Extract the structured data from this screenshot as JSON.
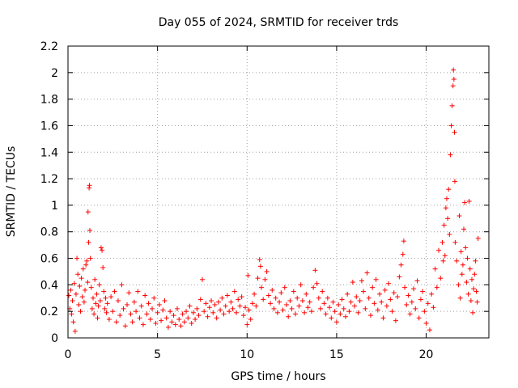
{
  "chart_data": {
    "type": "scatter",
    "title": "Day 055 of 2024, SRMTID for receiver trds",
    "xlabel": "GPS time / hours",
    "ylabel": "SRMTID / TECUs",
    "xlim": [
      0,
      23.5
    ],
    "ylim": [
      0,
      2.2
    ],
    "xticks": [
      0,
      5,
      10,
      15,
      20
    ],
    "xtick_labels": [
      "0",
      "5",
      "10",
      "15",
      "20"
    ],
    "yticks": [
      0,
      0.2,
      0.4,
      0.6,
      0.8,
      1.0,
      1.2,
      1.4,
      1.6,
      1.8,
      2.0,
      2.2
    ],
    "ytick_labels": [
      "0",
      "0.2",
      "0.4",
      "0.6",
      "0.8",
      "1",
      "1.2",
      "1.4",
      "1.6",
      "1.8",
      "2",
      "2.2"
    ],
    "grid": true,
    "marker": "plus",
    "color": "#ff0000",
    "series": [
      {
        "name": "SRMTID",
        "points": [
          [
            0.05,
            0.32
          ],
          [
            0.1,
            0.22
          ],
          [
            0.15,
            0.36
          ],
          [
            0.2,
            0.18
          ],
          [
            0.25,
            0.28
          ],
          [
            0.3,
            0.12
          ],
          [
            0.35,
            0.41
          ],
          [
            0.4,
            0.05
          ],
          [
            0.45,
            0.33
          ],
          [
            0.5,
            0.6
          ],
          [
            0.55,
            0.48
          ],
          [
            0.6,
            0.25
          ],
          [
            0.65,
            0.39
          ],
          [
            0.7,
            0.2
          ],
          [
            0.75,
            0.45
          ],
          [
            0.8,
            0.31
          ],
          [
            0.85,
            0.52
          ],
          [
            0.9,
            0.27
          ],
          [
            0.95,
            0.36
          ],
          [
            1.0,
            0.55
          ],
          [
            1.05,
            0.58
          ],
          [
            1.1,
            0.42
          ],
          [
            1.12,
            0.95
          ],
          [
            1.15,
            0.72
          ],
          [
            1.18,
            1.13
          ],
          [
            1.2,
            1.15
          ],
          [
            1.22,
            0.81
          ],
          [
            1.25,
            0.6
          ],
          [
            1.3,
            0.38
          ],
          [
            1.35,
            0.22
          ],
          [
            1.4,
            0.3
          ],
          [
            1.45,
            0.18
          ],
          [
            1.5,
            0.44
          ],
          [
            1.55,
            0.26
          ],
          [
            1.6,
            0.33
          ],
          [
            1.65,
            0.15
          ],
          [
            1.7,
            0.24
          ],
          [
            1.75,
            0.4
          ],
          [
            1.8,
            0.28
          ],
          [
            1.85,
            0.68
          ],
          [
            1.9,
            0.66
          ],
          [
            1.95,
            0.53
          ],
          [
            2.0,
            0.35
          ],
          [
            2.05,
            0.22
          ],
          [
            2.1,
            0.3
          ],
          [
            2.15,
            0.19
          ],
          [
            2.2,
            0.26
          ],
          [
            2.3,
            0.14
          ],
          [
            2.4,
            0.31
          ],
          [
            2.5,
            0.2
          ],
          [
            2.6,
            0.35
          ],
          [
            2.7,
            0.12
          ],
          [
            2.8,
            0.28
          ],
          [
            2.9,
            0.17
          ],
          [
            3.0,
            0.4
          ],
          [
            3.1,
            0.22
          ],
          [
            3.2,
            0.09
          ],
          [
            3.3,
            0.25
          ],
          [
            3.4,
            0.34
          ],
          [
            3.5,
            0.18
          ],
          [
            3.6,
            0.12
          ],
          [
            3.7,
            0.27
          ],
          [
            3.8,
            0.2
          ],
          [
            3.9,
            0.35
          ],
          [
            4.0,
            0.15
          ],
          [
            4.1,
            0.24
          ],
          [
            4.2,
            0.1
          ],
          [
            4.3,
            0.32
          ],
          [
            4.4,
            0.18
          ],
          [
            4.5,
            0.26
          ],
          [
            4.6,
            0.14
          ],
          [
            4.7,
            0.22
          ],
          [
            4.8,
            0.3
          ],
          [
            4.9,
            0.11
          ],
          [
            5.0,
            0.19
          ],
          [
            5.1,
            0.25
          ],
          [
            5.2,
            0.13
          ],
          [
            5.3,
            0.21
          ],
          [
            5.4,
            0.28
          ],
          [
            5.5,
            0.15
          ],
          [
            5.6,
            0.08
          ],
          [
            5.7,
            0.2
          ],
          [
            5.8,
            0.12
          ],
          [
            5.9,
            0.17
          ],
          [
            6.0,
            0.1
          ],
          [
            6.1,
            0.22
          ],
          [
            6.2,
            0.14
          ],
          [
            6.3,
            0.09
          ],
          [
            6.4,
            0.18
          ],
          [
            6.5,
            0.12
          ],
          [
            6.6,
            0.2
          ],
          [
            6.7,
            0.15
          ],
          [
            6.8,
            0.24
          ],
          [
            6.9,
            0.11
          ],
          [
            7.0,
            0.19
          ],
          [
            7.1,
            0.14
          ],
          [
            7.2,
            0.22
          ],
          [
            7.3,
            0.17
          ],
          [
            7.4,
            0.29
          ],
          [
            7.5,
            0.44
          ],
          [
            7.6,
            0.2
          ],
          [
            7.7,
            0.26
          ],
          [
            7.8,
            0.16
          ],
          [
            7.9,
            0.23
          ],
          [
            8.0,
            0.28
          ],
          [
            8.1,
            0.19
          ],
          [
            8.2,
            0.25
          ],
          [
            8.3,
            0.15
          ],
          [
            8.4,
            0.27
          ],
          [
            8.5,
            0.21
          ],
          [
            8.6,
            0.3
          ],
          [
            8.7,
            0.18
          ],
          [
            8.8,
            0.24
          ],
          [
            8.9,
            0.32
          ],
          [
            9.0,
            0.2
          ],
          [
            9.1,
            0.27
          ],
          [
            9.2,
            0.22
          ],
          [
            9.3,
            0.35
          ],
          [
            9.4,
            0.19
          ],
          [
            9.5,
            0.29
          ],
          [
            9.6,
            0.24
          ],
          [
            9.7,
            0.31
          ],
          [
            9.8,
            0.17
          ],
          [
            9.9,
            0.23
          ],
          [
            10.0,
            0.1
          ],
          [
            10.05,
            0.47
          ],
          [
            10.1,
            0.21
          ],
          [
            10.2,
            0.14
          ],
          [
            10.3,
            0.26
          ],
          [
            10.4,
            0.33
          ],
          [
            10.5,
            0.24
          ],
          [
            10.6,
            0.45
          ],
          [
            10.7,
            0.59
          ],
          [
            10.75,
            0.54
          ],
          [
            10.8,
            0.38
          ],
          [
            10.9,
            0.29
          ],
          [
            11.0,
            0.44
          ],
          [
            11.1,
            0.5
          ],
          [
            11.2,
            0.32
          ],
          [
            11.3,
            0.26
          ],
          [
            11.4,
            0.36
          ],
          [
            11.5,
            0.22
          ],
          [
            11.6,
            0.3
          ],
          [
            11.7,
            0.19
          ],
          [
            11.8,
            0.27
          ],
          [
            11.9,
            0.34
          ],
          [
            12.0,
            0.21
          ],
          [
            12.1,
            0.38
          ],
          [
            12.2,
            0.25
          ],
          [
            12.3,
            0.16
          ],
          [
            12.4,
            0.28
          ],
          [
            12.5,
            0.22
          ],
          [
            12.6,
            0.35
          ],
          [
            12.7,
            0.18
          ],
          [
            12.8,
            0.3
          ],
          [
            12.9,
            0.24
          ],
          [
            13.0,
            0.4
          ],
          [
            13.1,
            0.28
          ],
          [
            13.2,
            0.19
          ],
          [
            13.3,
            0.33
          ],
          [
            13.4,
            0.23
          ],
          [
            13.5,
            0.27
          ],
          [
            13.6,
            0.2
          ],
          [
            13.7,
            0.38
          ],
          [
            13.8,
            0.51
          ],
          [
            13.9,
            0.41
          ],
          [
            14.0,
            0.3
          ],
          [
            14.1,
            0.22
          ],
          [
            14.2,
            0.35
          ],
          [
            14.3,
            0.26
          ],
          [
            14.4,
            0.18
          ],
          [
            14.5,
            0.3
          ],
          [
            14.6,
            0.23
          ],
          [
            14.7,
            0.15
          ],
          [
            14.8,
            0.27
          ],
          [
            14.9,
            0.2
          ],
          [
            15.0,
            0.12
          ],
          [
            15.1,
            0.25
          ],
          [
            15.2,
            0.18
          ],
          [
            15.3,
            0.29
          ],
          [
            15.4,
            0.22
          ],
          [
            15.5,
            0.16
          ],
          [
            15.6,
            0.33
          ],
          [
            15.7,
            0.2
          ],
          [
            15.8,
            0.27
          ],
          [
            15.9,
            0.42
          ],
          [
            16.0,
            0.24
          ],
          [
            16.1,
            0.31
          ],
          [
            16.2,
            0.19
          ],
          [
            16.3,
            0.28
          ],
          [
            16.4,
            0.43
          ],
          [
            16.5,
            0.35
          ],
          [
            16.6,
            0.22
          ],
          [
            16.7,
            0.49
          ],
          [
            16.8,
            0.3
          ],
          [
            16.9,
            0.17
          ],
          [
            17.0,
            0.38
          ],
          [
            17.1,
            0.26
          ],
          [
            17.2,
            0.44
          ],
          [
            17.3,
            0.21
          ],
          [
            17.4,
            0.33
          ],
          [
            17.5,
            0.27
          ],
          [
            17.6,
            0.15
          ],
          [
            17.7,
            0.36
          ],
          [
            17.8,
            0.24
          ],
          [
            17.9,
            0.41
          ],
          [
            18.0,
            0.29
          ],
          [
            18.1,
            0.2
          ],
          [
            18.2,
            0.34
          ],
          [
            18.3,
            0.13
          ],
          [
            18.4,
            0.31
          ],
          [
            18.5,
            0.46
          ],
          [
            18.6,
            0.55
          ],
          [
            18.7,
            0.63
          ],
          [
            18.75,
            0.73
          ],
          [
            18.8,
            0.38
          ],
          [
            18.9,
            0.25
          ],
          [
            19.0,
            0.32
          ],
          [
            19.1,
            0.18
          ],
          [
            19.2,
            0.27
          ],
          [
            19.3,
            0.37
          ],
          [
            19.4,
            0.22
          ],
          [
            19.5,
            0.43
          ],
          [
            19.6,
            0.15
          ],
          [
            19.7,
            0.29
          ],
          [
            19.8,
            0.35
          ],
          [
            19.9,
            0.2
          ],
          [
            20.0,
            0.11
          ],
          [
            20.1,
            0.26
          ],
          [
            20.2,
            0.06
          ],
          [
            20.3,
            0.33
          ],
          [
            20.4,
            0.23
          ],
          [
            20.5,
            0.52
          ],
          [
            20.6,
            0.38
          ],
          [
            20.7,
            0.66
          ],
          [
            20.8,
            0.45
          ],
          [
            20.9,
            0.72
          ],
          [
            20.95,
            0.58
          ],
          [
            21.0,
            0.85
          ],
          [
            21.05,
            0.62
          ],
          [
            21.1,
            0.98
          ],
          [
            21.15,
            1.05
          ],
          [
            21.2,
            0.9
          ],
          [
            21.25,
            1.12
          ],
          [
            21.3,
            0.78
          ],
          [
            21.35,
            1.38
          ],
          [
            21.4,
            1.6
          ],
          [
            21.45,
            1.75
          ],
          [
            21.5,
            1.9
          ],
          [
            21.52,
            2.02
          ],
          [
            21.55,
            1.95
          ],
          [
            21.58,
            1.55
          ],
          [
            21.6,
            1.18
          ],
          [
            21.62,
            0.72
          ],
          [
            21.7,
            0.58
          ],
          [
            21.8,
            0.4
          ],
          [
            21.85,
            0.92
          ],
          [
            21.9,
            0.3
          ],
          [
            21.95,
            0.65
          ],
          [
            22.0,
            0.48
          ],
          [
            22.05,
            0.55
          ],
          [
            22.1,
            0.82
          ],
          [
            22.15,
            1.02
          ],
          [
            22.2,
            0.68
          ],
          [
            22.25,
            0.42
          ],
          [
            22.3,
            0.6
          ],
          [
            22.35,
            0.33
          ],
          [
            22.4,
            1.03
          ],
          [
            22.45,
            0.52
          ],
          [
            22.5,
            0.28
          ],
          [
            22.55,
            0.44
          ],
          [
            22.6,
            0.19
          ],
          [
            22.65,
            0.37
          ],
          [
            22.7,
            0.48
          ],
          [
            22.75,
            0.58
          ],
          [
            22.8,
            0.35
          ],
          [
            22.85,
            0.27
          ],
          [
            22.9,
            0.75
          ]
        ]
      }
    ]
  }
}
